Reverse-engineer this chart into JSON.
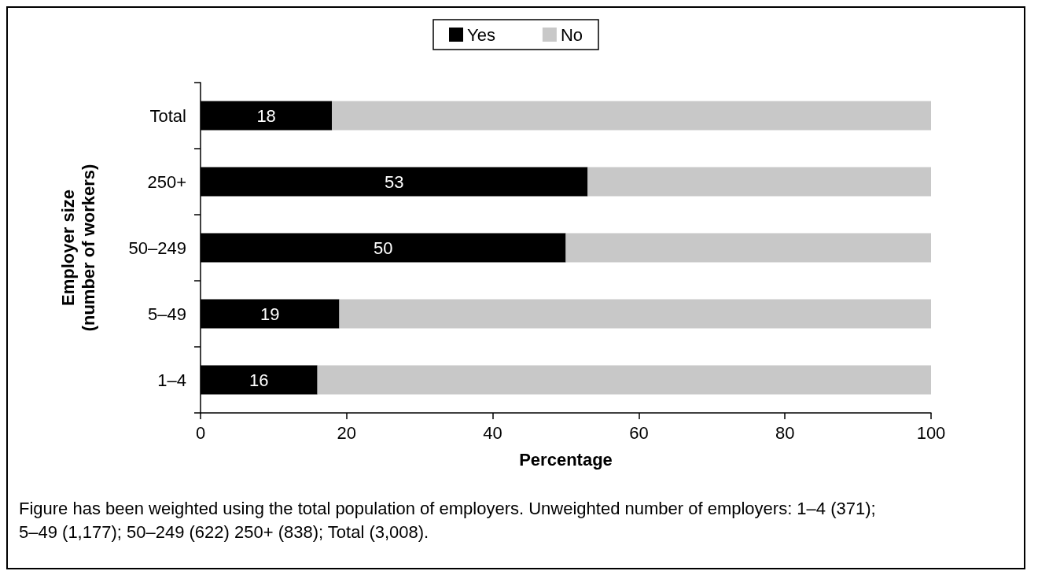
{
  "chart_data": {
    "type": "bar",
    "orientation": "horizontal",
    "stacked": true,
    "categories": [
      "Total",
      "250+",
      "50–249",
      "5–49",
      "1–4"
    ],
    "series": [
      {
        "name": "Yes",
        "color": "#000000",
        "values": [
          18,
          53,
          50,
          19,
          16
        ],
        "value_labels": [
          "18",
          "53",
          "50",
          "19",
          "16"
        ]
      },
      {
        "name": "No",
        "color": "#c8c8c8",
        "values": [
          82,
          47,
          50,
          81,
          84
        ]
      }
    ],
    "xlim": [
      0,
      100
    ],
    "xticks": [
      0,
      20,
      40,
      60,
      80,
      100
    ],
    "xlabel": "Percentage",
    "ylabel": "Employer size\n(number of workers)",
    "legend": "top",
    "grid": false,
    "annotations": [
      "Figure has been weighted using the total population of employers. Unweighted number of employers: 1–4 (371); 5–49 (1,177); 50–249 (622) 250+ (838); Total (3,008)."
    ]
  }
}
